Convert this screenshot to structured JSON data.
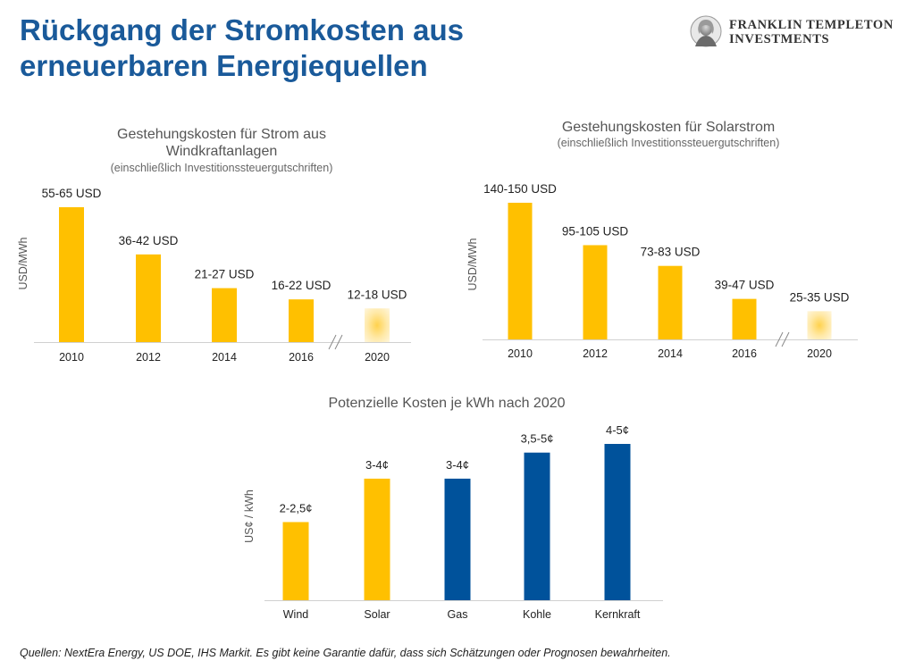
{
  "page_title_line1": "Rückgang der Stromkosten aus",
  "page_title_line2": "erneuerbaren Energiequellen",
  "logo": {
    "line1": "FRANKLIN TEMPLETON",
    "line2": "INVESTMENTS",
    "icon": "franklin-portrait-icon"
  },
  "footnote": "Quellen: NextEra Energy, US DOE, IHS Markit. Es gibt keine Garantie dafür, dass sich Schätzungen oder Prognosen bewahrheiten.",
  "colors": {
    "title": "#1a5a9a",
    "renewable": "#ffc000",
    "conventional": "#00529b",
    "forecast": "#ffe8a0"
  },
  "chart_data": [
    {
      "type": "bar",
      "title": "Gestehungskosten für Strom aus Windkraftanlagen",
      "subtitle": "(einschließlich Investitionssteuergutschriften)",
      "ylabel": "USD/MWh",
      "categories": [
        "2010",
        "2012",
        "2014",
        "2016",
        "2020"
      ],
      "values": [
        60,
        39,
        24,
        19,
        15
      ],
      "labels": [
        "55-65 USD",
        "36-42 USD",
        "21-27 USD",
        "16-22 USD",
        "12-18 USD"
      ],
      "forecast_index": 4,
      "axis_break_before": "2020"
    },
    {
      "type": "bar",
      "title": "Gestehungskosten für Solarstrom",
      "subtitle": "(einschließlich Investitionssteuergutschriften)",
      "ylabel": "USD/MWh",
      "categories": [
        "2010",
        "2012",
        "2014",
        "2016",
        "2020"
      ],
      "values": [
        145,
        100,
        78,
        43,
        30
      ],
      "labels": [
        "140-150 USD",
        "95-105 USD",
        "73-83 USD",
        "39-47 USD",
        "25-35 USD"
      ],
      "forecast_index": 4,
      "axis_break_before": "2020"
    },
    {
      "type": "bar",
      "title": "Potenzielle Kosten je kWh nach 2020",
      "ylabel": "US¢ / kWh",
      "categories": [
        "Wind",
        "Solar",
        "Gas",
        "Kohle",
        "Kernkraft"
      ],
      "values": [
        2.25,
        3.5,
        3.5,
        4.25,
        4.5
      ],
      "labels": [
        "2-2,5¢",
        "3-4¢",
        "3-4¢",
        "3,5-5¢",
        "4-5¢"
      ],
      "bar_colors": [
        "#ffc000",
        "#ffc000",
        "#00529b",
        "#00529b",
        "#00529b"
      ]
    }
  ]
}
